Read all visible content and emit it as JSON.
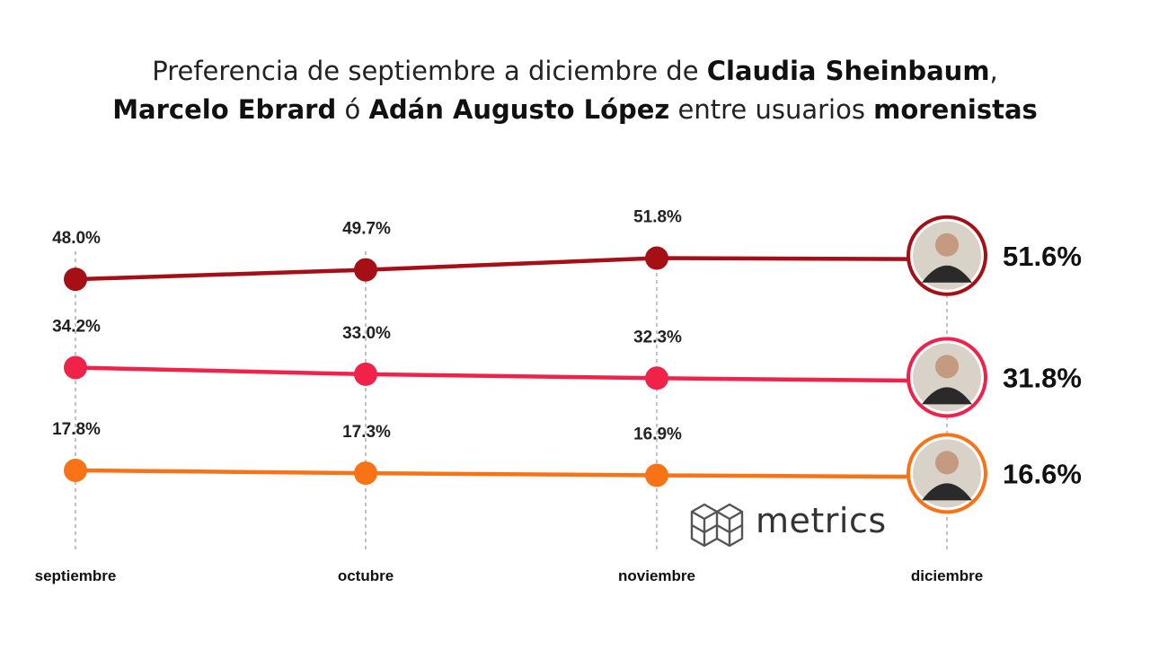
{
  "title": {
    "line1_a": "Preferencia de septiembre a diciembre de ",
    "line1_b": "Claudia Sheinbaum",
    "line1_c": ",",
    "line2_a": "Marcelo Ebrard",
    "line2_b": " ó ",
    "line2_c": "Adán Augusto López",
    "line2_d": " entre usuarios ",
    "line2_e": "morenistas"
  },
  "logo": {
    "text": "metrics",
    "icon": "cube-grid-icon"
  },
  "chart_data": {
    "type": "line",
    "categories": [
      "septiembre",
      "octubre",
      "noviembre",
      "diciembre"
    ],
    "series": [
      {
        "name": "Claudia Sheinbaum",
        "color": "#a50f15",
        "values": [
          48.0,
          49.7,
          51.8,
          51.6
        ],
        "labels": [
          "48.0%",
          "49.7%",
          "51.8%",
          "51.6%"
        ],
        "avatar_icon": "portrait-icon"
      },
      {
        "name": "Marcelo Ebrard",
        "color": "#f0224a",
        "values": [
          34.2,
          33.0,
          32.3,
          31.8
        ],
        "labels": [
          "34.2%",
          "33.0%",
          "32.3%",
          "31.8%"
        ],
        "avatar_icon": "portrait-icon"
      },
      {
        "name": "Adán Augusto López",
        "color": "#f97316",
        "values": [
          17.8,
          17.3,
          16.9,
          16.6
        ],
        "labels": [
          "17.8%",
          "17.3%",
          "16.9%",
          "16.6%"
        ],
        "avatar_icon": "portrait-icon"
      }
    ],
    "grid": "vertical dashed",
    "legend": "none"
  }
}
